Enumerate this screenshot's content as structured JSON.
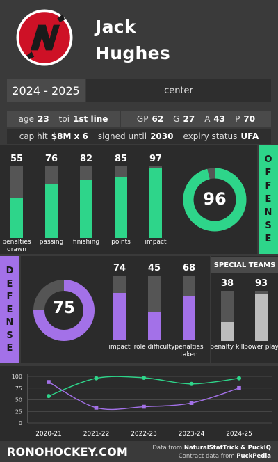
{
  "player": {
    "first_name": "Jack",
    "last_name": "Hughes",
    "season": "2024 - 2025",
    "position": "center",
    "age_label": "age",
    "age": "23",
    "toi_label": "toi",
    "toi": "1st line",
    "gp_label": "GP",
    "gp": "62",
    "g_label": "G",
    "g": "27",
    "a_label": "A",
    "a": "43",
    "p_label": "P",
    "p": "70",
    "caphit_label": "cap hit",
    "caphit": "$8M x 6",
    "signed_label": "signed until",
    "signed": "2030",
    "expiry_label": "expiry status",
    "expiry": "UFA"
  },
  "offense": {
    "title": "OFFENSE",
    "overall": "96",
    "overall_value": 96,
    "color": "#2ed58a",
    "bars": [
      {
        "label": "penalties drawn",
        "value": 55
      },
      {
        "label": "passing",
        "value": 76
      },
      {
        "label": "finishing",
        "value": 82
      },
      {
        "label": "points",
        "value": 85
      },
      {
        "label": "impact",
        "value": 97
      }
    ]
  },
  "defense": {
    "title": "DEFENSE",
    "overall": "75",
    "overall_value": 75,
    "color": "#a371e8",
    "bars": [
      {
        "label": "impact",
        "value": 74
      },
      {
        "label": "role difficulty",
        "value": 45
      },
      {
        "label": "penalties taken",
        "value": 68
      }
    ]
  },
  "special_teams": {
    "title": "SPECIAL TEAMS",
    "color": "#bdbdbd",
    "bars": [
      {
        "label": "penalty kill",
        "value": 38
      },
      {
        "label": "power play",
        "value": 93
      }
    ]
  },
  "chart_data": {
    "type": "line",
    "x": [
      "2020-21",
      "2021-22",
      "2022-23",
      "2023-24",
      "2024-25"
    ],
    "yticks": [
      "100",
      "75",
      "50",
      "25",
      "0"
    ],
    "ylim": [
      0,
      100
    ],
    "grid": true,
    "series": [
      {
        "color": "#2ed58a",
        "values": [
          58,
          96,
          97,
          84,
          96
        ]
      },
      {
        "color": "#a371e8",
        "values": [
          88,
          33,
          35,
          43,
          75
        ]
      }
    ]
  },
  "footer": {
    "site": "RONOHOCKEY.COM",
    "credit1_prefix": "Data from ",
    "credit1_src": "NaturalStatTrick & PuckIQ",
    "credit2_prefix": "Contract data from ",
    "credit2_src": "PuckPedia"
  }
}
